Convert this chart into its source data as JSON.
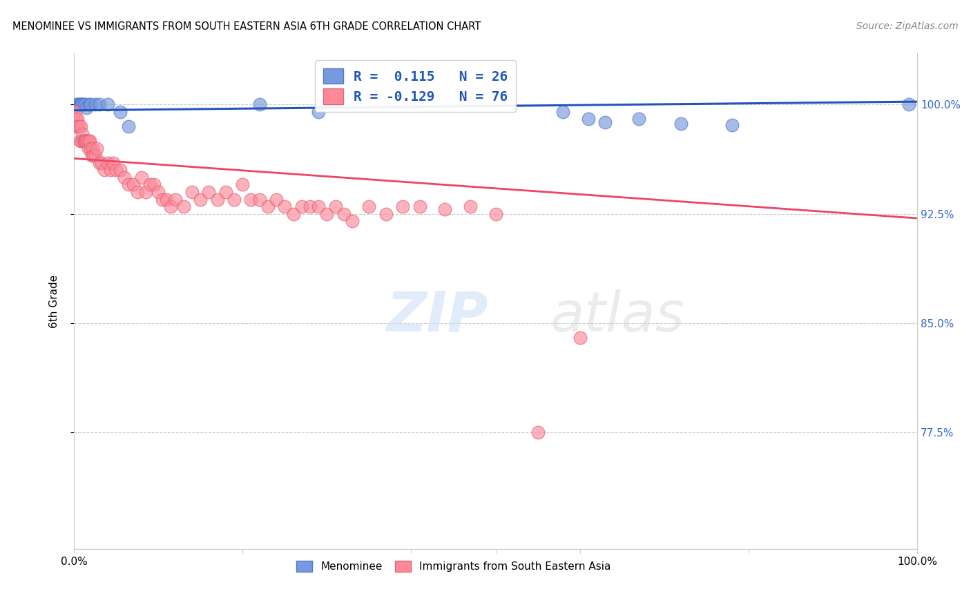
{
  "title": "MENOMINEE VS IMMIGRANTS FROM SOUTH EASTERN ASIA 6TH GRADE CORRELATION CHART",
  "source": "Source: ZipAtlas.com",
  "ylabel": "6th Grade",
  "yticks": [
    0.775,
    0.85,
    0.925,
    1.0
  ],
  "ytick_labels": [
    "77.5%",
    "85.0%",
    "92.5%",
    "100.0%"
  ],
  "xlim": [
    0.0,
    1.0
  ],
  "ylim": [
    0.695,
    1.035
  ],
  "blue_color": "#7799DD",
  "pink_color": "#FF8899",
  "blue_line_color": "#2255BB",
  "pink_line_color": "#EE4466",
  "blue_marker_edge": "#5577CC",
  "pink_marker_edge": "#DD6677",
  "menominee_x": [
    0.003,
    0.005,
    0.006,
    0.007,
    0.008,
    0.009,
    0.01,
    0.012,
    0.013,
    0.015,
    0.018,
    0.02,
    0.025,
    0.03,
    0.04,
    0.055,
    0.065,
    0.22,
    0.29,
    0.58,
    0.61,
    0.63,
    0.67,
    0.72,
    0.78,
    0.99
  ],
  "menominee_y": [
    1.0,
    1.0,
    1.0,
    1.0,
    1.0,
    1.0,
    1.0,
    1.0,
    1.0,
    0.998,
    1.0,
    1.0,
    1.0,
    1.0,
    1.0,
    0.995,
    0.985,
    1.0,
    0.995,
    0.995,
    0.99,
    0.988,
    0.99,
    0.987,
    0.986,
    1.0
  ],
  "immigrants_x": [
    0.001,
    0.002,
    0.003,
    0.004,
    0.005,
    0.006,
    0.007,
    0.008,
    0.009,
    0.01,
    0.011,
    0.012,
    0.013,
    0.014,
    0.015,
    0.016,
    0.017,
    0.018,
    0.019,
    0.02,
    0.021,
    0.022,
    0.023,
    0.025,
    0.027,
    0.03,
    0.033,
    0.036,
    0.04,
    0.043,
    0.047,
    0.05,
    0.055,
    0.06,
    0.065,
    0.07,
    0.075,
    0.08,
    0.085,
    0.09,
    0.095,
    0.1,
    0.105,
    0.11,
    0.115,
    0.12,
    0.13,
    0.14,
    0.15,
    0.16,
    0.17,
    0.18,
    0.19,
    0.2,
    0.21,
    0.22,
    0.23,
    0.24,
    0.25,
    0.26,
    0.27,
    0.28,
    0.29,
    0.3,
    0.31,
    0.32,
    0.33,
    0.35,
    0.37,
    0.39,
    0.41,
    0.44,
    0.47,
    0.5,
    0.55,
    0.6
  ],
  "immigrants_y": [
    0.995,
    0.99,
    0.985,
    0.99,
    0.985,
    0.985,
    0.975,
    0.985,
    0.975,
    0.98,
    0.975,
    0.975,
    0.975,
    0.975,
    0.975,
    0.975,
    0.97,
    0.975,
    0.975,
    0.97,
    0.965,
    0.97,
    0.965,
    0.965,
    0.97,
    0.96,
    0.96,
    0.955,
    0.96,
    0.955,
    0.96,
    0.955,
    0.955,
    0.95,
    0.945,
    0.945,
    0.94,
    0.95,
    0.94,
    0.945,
    0.945,
    0.94,
    0.935,
    0.935,
    0.93,
    0.935,
    0.93,
    0.94,
    0.935,
    0.94,
    0.935,
    0.94,
    0.935,
    0.945,
    0.935,
    0.935,
    0.93,
    0.935,
    0.93,
    0.925,
    0.93,
    0.93,
    0.93,
    0.925,
    0.93,
    0.925,
    0.92,
    0.93,
    0.925,
    0.93,
    0.93,
    0.928,
    0.93,
    0.925,
    0.775,
    0.84
  ],
  "pink_line_x": [
    0.0,
    1.0
  ],
  "pink_line_y": [
    0.963,
    0.922
  ],
  "blue_line_x": [
    0.0,
    1.0
  ],
  "blue_line_y": [
    0.996,
    1.002
  ]
}
